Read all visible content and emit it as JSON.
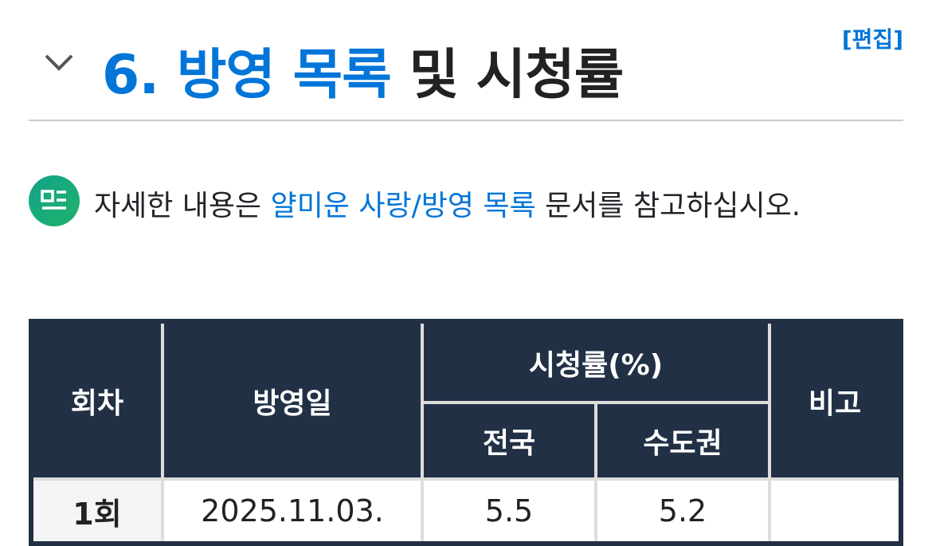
{
  "heading": {
    "number": "6.",
    "link_text": "방영 목록",
    "rest": " 및 시청률",
    "edit_label": "[편집]"
  },
  "note": {
    "icon": "document-list-icon",
    "prefix": "자세한 내용은 ",
    "link": "얄미운 사랑/방영 목록",
    "suffix": " 문서를 참고하십시오."
  },
  "table": {
    "headers": {
      "episode": "회차",
      "air_date": "방영일",
      "ratings": "시청률(%)",
      "nationwide": "전국",
      "capital": "수도권",
      "remarks": "비고"
    },
    "rows": [
      {
        "episode": "1회",
        "air_date": "2025.11.03.",
        "nationwide": "5.5",
        "capital": "5.2",
        "remarks": ""
      }
    ]
  },
  "colors": {
    "link": "#0275d8",
    "header_bg": "#213045",
    "badge": "#13a28a"
  }
}
